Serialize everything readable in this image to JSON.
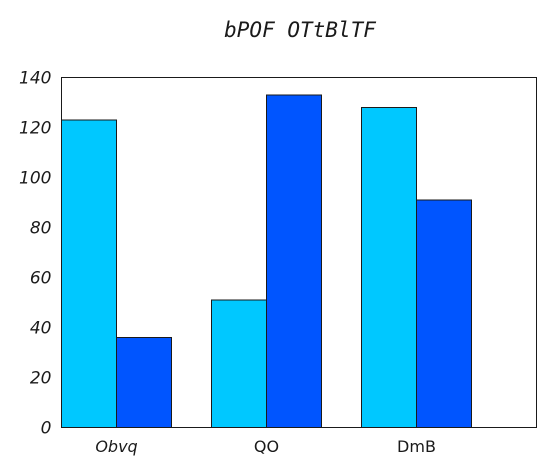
{
  "chart_data": {
    "type": "bar",
    "title": "bPOF OTtBlTF",
    "xlabel": "",
    "ylabel": "",
    "categories": [
      "Obvq",
      "QO",
      "DmB"
    ],
    "series": [
      {
        "values": [
          123,
          51,
          128
        ],
        "color": "#00c8ff"
      },
      {
        "values": [
          36,
          133,
          91
        ],
        "color": "#0055ff"
      }
    ],
    "ylim": [
      0,
      140
    ],
    "yticks": [
      0,
      20,
      40,
      60,
      80,
      100,
      120,
      140
    ],
    "ytick_labels": [
      "0",
      "20",
      "40",
      "60",
      "80",
      "100",
      "120",
      "140"
    ],
    "grid": false,
    "legend": "none"
  }
}
